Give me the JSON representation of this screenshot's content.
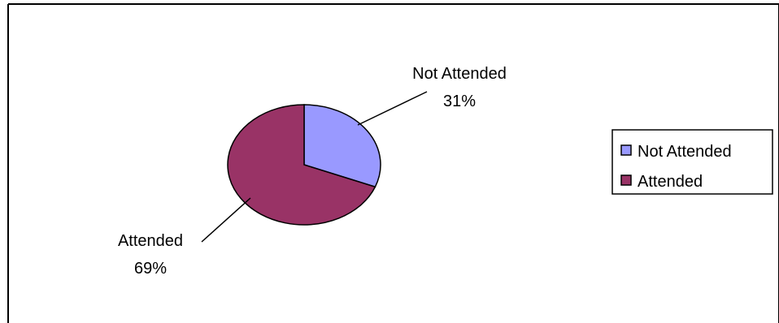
{
  "chart_data": {
    "type": "pie",
    "title": "",
    "slices": [
      {
        "label": "Not Attended",
        "value": 31,
        "value_text": "31%",
        "color": "#9999ff"
      },
      {
        "label": "Attended",
        "value": 69,
        "value_text": "69%",
        "color": "#993366"
      }
    ],
    "legend": {
      "placement": "right",
      "entries": [
        {
          "label": "Not Attended",
          "color": "#9999ff"
        },
        {
          "label": "Attended",
          "color": "#993366"
        }
      ]
    }
  }
}
